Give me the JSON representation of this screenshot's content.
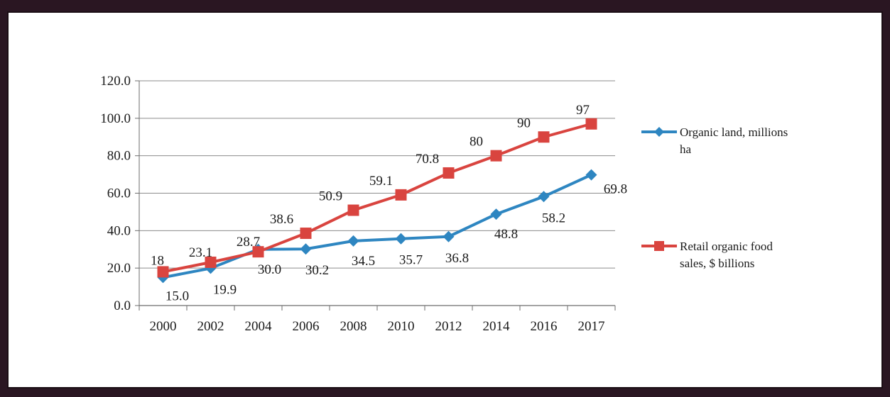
{
  "chart_data": {
    "type": "line",
    "x": [
      "2000",
      "2002",
      "2004",
      "2006",
      "2008",
      "2010",
      "2012",
      "2014",
      "2016",
      "2017"
    ],
    "ylim": [
      0,
      120
    ],
    "yticks": [
      "0.0",
      "20.0",
      "40.0",
      "60.0",
      "80.0",
      "100.0",
      "120.0"
    ],
    "grid": true,
    "legend_position": "right",
    "series": [
      {
        "name": "Organic land, millions ha",
        "legend_lines": [
          "Organic land, millions",
          "ha"
        ],
        "color": "#2e86c1",
        "marker": "diamond",
        "values": [
          15.0,
          19.9,
          30.0,
          30.2,
          34.5,
          35.7,
          36.8,
          48.8,
          58.2,
          69.8
        ],
        "labels": [
          "15.0",
          "19.9",
          "30.0",
          "30.2",
          "34.5",
          "35.7",
          "36.8",
          "48.8",
          "58.2",
          "69.8"
        ]
      },
      {
        "name": "Retail organic food sales, $ billions",
        "legend_lines": [
          "Retail organic food",
          "sales, $ billions"
        ],
        "color": "#d9443f",
        "marker": "square",
        "values": [
          18,
          23.1,
          28.7,
          38.6,
          50.9,
          59.1,
          70.8,
          80,
          90,
          97
        ],
        "labels": [
          "18",
          "23.1",
          "28.7",
          "38.6",
          "50.9",
          "59.1",
          "70.8",
          "80",
          "90",
          "97"
        ]
      }
    ]
  }
}
